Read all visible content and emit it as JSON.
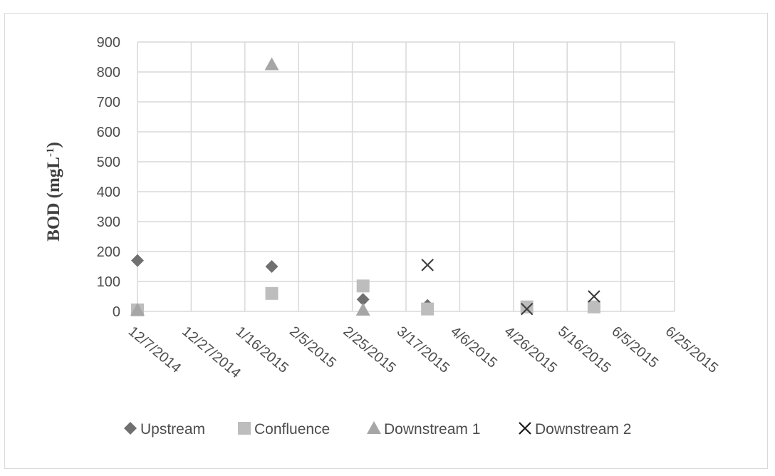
{
  "chart_data": {
    "type": "scatter",
    "title": "",
    "xlabel": "",
    "ylabel": "BOD (mgL",
    "ylabel_superscript": "-1",
    "ylabel_close": ")",
    "x_axis_type": "date",
    "xlim": [
      "2014-12-07",
      "2015-06-25"
    ],
    "x_ticks": [
      "12/7/2014",
      "12/27/2014",
      "1/16/2015",
      "2/5/2015",
      "2/25/2015",
      "3/17/2015",
      "4/6/2015",
      "4/26/2015",
      "5/16/2015",
      "6/5/2015",
      "6/25/2015"
    ],
    "ylim": [
      0,
      900
    ],
    "y_ticks": [
      "0",
      "100",
      "200",
      "300",
      "400",
      "500",
      "600",
      "700",
      "800",
      "900"
    ],
    "grid": true,
    "legend_position": "bottom",
    "series": [
      {
        "name": "Upstream",
        "marker": "diamond",
        "color": "#707070",
        "points": [
          {
            "x": "2014-12-07",
            "y": 170
          },
          {
            "x": "2015-01-26",
            "y": 150
          },
          {
            "x": "2015-03-01",
            "y": 40
          },
          {
            "x": "2015-03-25",
            "y": 20
          },
          {
            "x": "2015-05-01",
            "y": 15
          },
          {
            "x": "2015-05-26",
            "y": 15
          }
        ]
      },
      {
        "name": "Confluence",
        "marker": "square",
        "color": "#bdbdbd",
        "points": [
          {
            "x": "2014-12-07",
            "y": 5
          },
          {
            "x": "2015-01-26",
            "y": 60
          },
          {
            "x": "2015-03-01",
            "y": 85
          },
          {
            "x": "2015-03-25",
            "y": 8
          },
          {
            "x": "2015-05-01",
            "y": 15
          },
          {
            "x": "2015-05-26",
            "y": 15
          }
        ]
      },
      {
        "name": "Downstream 1",
        "marker": "triangle",
        "color": "#a6a6a6",
        "points": [
          {
            "x": "2014-12-07",
            "y": 5
          },
          {
            "x": "2015-01-26",
            "y": 825
          },
          {
            "x": "2015-03-01",
            "y": 5
          }
        ]
      },
      {
        "name": "Downstream 2",
        "marker": "x",
        "color": "#404040",
        "points": [
          {
            "x": "2015-03-25",
            "y": 155
          },
          {
            "x": "2015-05-01",
            "y": 8
          },
          {
            "x": "2015-05-26",
            "y": 50
          }
        ]
      }
    ]
  }
}
